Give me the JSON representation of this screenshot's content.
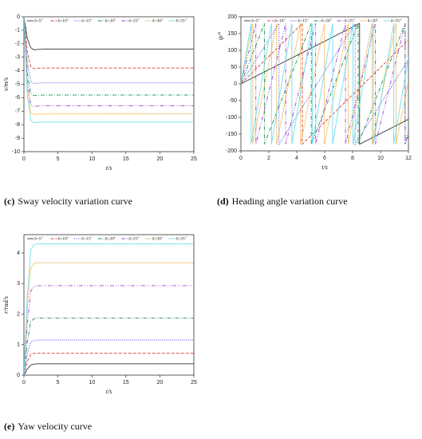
{
  "chart_data": [
    {
      "type": "line",
      "caption_label": "(c)",
      "caption": "Sway velocity variation curve",
      "x_label": "t/s",
      "y_label": "v/m/s",
      "x": [
        0,
        0.5,
        1,
        1.5,
        2,
        3,
        5,
        10,
        15,
        20,
        25
      ],
      "xlim": [
        0,
        25
      ],
      "xticks": [
        0,
        5,
        10,
        15,
        20,
        25
      ],
      "ylim": [
        -10,
        0
      ],
      "yticks": [
        0,
        -1,
        -2,
        -3,
        -4,
        -5,
        -6,
        -7,
        -8,
        -9,
        -10
      ],
      "series": [
        {
          "name": "δ=5°",
          "color": "#333333",
          "dash": "none",
          "values": [
            0,
            -1.6,
            -2.3,
            -2.45,
            -2.42,
            -2.4,
            -2.4,
            -2.4,
            -2.4,
            -2.4,
            -2.4
          ]
        },
        {
          "name": "δ=10°",
          "color": "#e0413c",
          "dash": "4 2",
          "values": [
            0,
            -2.6,
            -3.7,
            -3.85,
            -3.82,
            -3.8,
            -3.8,
            -3.8,
            -3.8,
            -3.8,
            -3.8
          ]
        },
        {
          "name": "δ=15°",
          "color": "#3d3df0",
          "dash": "1 1.5",
          "values": [
            0,
            -3.4,
            -4.8,
            -4.95,
            -4.92,
            -4.9,
            -4.9,
            -4.9,
            -4.9,
            -4.9,
            -4.9
          ]
        },
        {
          "name": "δ=20°",
          "color": "#1e9150",
          "dash": "5 2 1 2",
          "values": [
            0,
            -4.2,
            -5.7,
            -5.85,
            -5.82,
            -5.8,
            -5.8,
            -5.8,
            -5.8,
            -5.8,
            -5.8
          ]
        },
        {
          "name": "δ=25°",
          "color": "#a040d0",
          "dash": "5 2 1 2 1 2",
          "values": [
            0,
            -4.8,
            -6.5,
            -6.65,
            -6.62,
            -6.6,
            -6.6,
            -6.6,
            -6.6,
            -6.6,
            -6.6
          ]
        },
        {
          "name": "δ=30°",
          "color": "#e8a020",
          "dash": "1.5 1",
          "values": [
            0,
            -5.3,
            -7.1,
            -7.25,
            -7.22,
            -7.2,
            -7.2,
            -7.2,
            -7.2,
            -7.2,
            -7.2
          ]
        },
        {
          "name": "δ=35°",
          "color": "#6fdfea",
          "dash": "none",
          "values": [
            0,
            -5.8,
            -7.7,
            -7.85,
            -7.82,
            -7.8,
            -7.8,
            -7.8,
            -7.8,
            -7.8,
            -7.8
          ]
        }
      ]
    },
    {
      "type": "line",
      "caption_label": "(d)",
      "caption": "Heading angle variation curve",
      "x_label": "t/s",
      "y_label": "ψ/°",
      "xlim": [
        0,
        12
      ],
      "xticks": [
        0,
        2,
        4,
        6,
        8,
        10,
        12
      ],
      "ylim": [
        -200,
        200
      ],
      "yticks": [
        -200,
        -150,
        -100,
        -50,
        0,
        50,
        100,
        150,
        200
      ],
      "series": [
        {
          "name": "δ=5°",
          "color": "#333333",
          "dash": "none",
          "x": [
            0,
            8.5,
            8.5,
            12
          ],
          "values": [
            0,
            180,
            -180,
            -106
          ]
        },
        {
          "name": "δ=10°",
          "color": "#e0413c",
          "dash": "4 2",
          "x": [
            0,
            4.4,
            4.4,
            12
          ],
          "values": [
            0,
            180,
            -180,
            131
          ]
        },
        {
          "name": "δ=15°",
          "color": "#3d3df0",
          "dash": "1 1.5",
          "x": [
            0,
            2.73,
            2.73,
            8.18,
            8.18,
            12
          ],
          "values": [
            0,
            180,
            -180,
            180,
            -180,
            72
          ]
        },
        {
          "name": "δ=20°",
          "color": "#1e9150",
          "dash": "5 2 1 2",
          "x": [
            0,
            1.68,
            1.68,
            5.04,
            5.04,
            8.4,
            8.4,
            11.76,
            11.76,
            12
          ],
          "values": [
            0,
            180,
            -180,
            180,
            -180,
            180,
            -180,
            180,
            -180,
            -154
          ]
        },
        {
          "name": "δ=25°",
          "color": "#a040d0",
          "dash": "5 2 1 2 1 2",
          "x": [
            0,
            1.07,
            1.07,
            3.21,
            3.21,
            5.35,
            5.35,
            7.49,
            7.49,
            9.63,
            9.63,
            11.77,
            11.77,
            12
          ],
          "values": [
            0,
            180,
            -180,
            180,
            -180,
            180,
            -180,
            180,
            -180,
            180,
            -180,
            180,
            -180,
            -141
          ]
        },
        {
          "name": "δ=30°",
          "color": "#e8a020",
          "dash": "1.5 1",
          "x": [
            0,
            0.85,
            0.85,
            2.56,
            2.56,
            4.27,
            4.27,
            5.98,
            5.98,
            7.69,
            7.69,
            9.4,
            9.4,
            11.11,
            11.11,
            12
          ],
          "values": [
            0,
            180,
            -180,
            180,
            -180,
            180,
            -180,
            180,
            -180,
            180,
            -180,
            180,
            -180,
            180,
            -180,
            8
          ]
        },
        {
          "name": "δ=35°",
          "color": "#6fdfea",
          "dash": "none",
          "x": [
            0,
            0.73,
            0.73,
            2.19,
            2.19,
            3.65,
            3.65,
            5.11,
            5.11,
            6.57,
            6.57,
            8.03,
            8.03,
            9.49,
            9.49,
            10.95,
            10.95,
            12
          ],
          "values": [
            0,
            180,
            -180,
            180,
            -180,
            180,
            -180,
            180,
            -180,
            180,
            -180,
            180,
            -180,
            180,
            -180,
            180,
            -180,
            78
          ]
        }
      ]
    },
    {
      "type": "line",
      "caption_label": "(e)",
      "caption": "Yaw velocity curve",
      "x_label": "t/s",
      "y_label": "r/rad/s",
      "x": [
        0,
        0.5,
        1,
        1.5,
        2,
        3,
        5,
        10,
        15,
        20,
        25
      ],
      "xlim": [
        0,
        25
      ],
      "xticks": [
        0,
        5,
        10,
        15,
        20,
        25
      ],
      "ylim": [
        0,
        4.6
      ],
      "yticks": [
        0,
        1,
        2,
        3,
        4
      ],
      "series": [
        {
          "name": "δ=5°",
          "color": "#333333",
          "dash": "none",
          "values": [
            0,
            0.2,
            0.33,
            0.36,
            0.37,
            0.37,
            0.37,
            0.37,
            0.37,
            0.37,
            0.37
          ]
        },
        {
          "name": "δ=10°",
          "color": "#e0413c",
          "dash": "4 2",
          "values": [
            0,
            0.45,
            0.68,
            0.72,
            0.72,
            0.72,
            0.72,
            0.72,
            0.72,
            0.72,
            0.72
          ]
        },
        {
          "name": "δ=15°",
          "color": "#3d3df0",
          "dash": "1 1.5",
          "values": [
            0,
            0.7,
            1.08,
            1.14,
            1.15,
            1.15,
            1.15,
            1.15,
            1.15,
            1.15,
            1.15
          ]
        },
        {
          "name": "δ=20°",
          "color": "#1e9150",
          "dash": "5 2 1 2",
          "values": [
            0,
            1.1,
            1.75,
            1.85,
            1.87,
            1.87,
            1.87,
            1.87,
            1.87,
            1.87,
            1.87
          ]
        },
        {
          "name": "δ=25°",
          "color": "#a040d0",
          "dash": "5 2 1 2 1 2",
          "values": [
            0,
            1.7,
            2.75,
            2.9,
            2.93,
            2.93,
            2.93,
            2.93,
            2.93,
            2.93,
            2.93
          ]
        },
        {
          "name": "δ=30°",
          "color": "#e8a020",
          "dash": "1.5 1",
          "values": [
            0,
            2.2,
            3.5,
            3.66,
            3.68,
            3.68,
            3.68,
            3.68,
            3.68,
            3.68,
            3.68
          ]
        },
        {
          "name": "δ=35°",
          "color": "#6fdfea",
          "dash": "none",
          "values": [
            0,
            2.6,
            4.1,
            4.28,
            4.3,
            4.3,
            4.3,
            4.3,
            4.3,
            4.3,
            4.3
          ]
        }
      ]
    }
  ]
}
